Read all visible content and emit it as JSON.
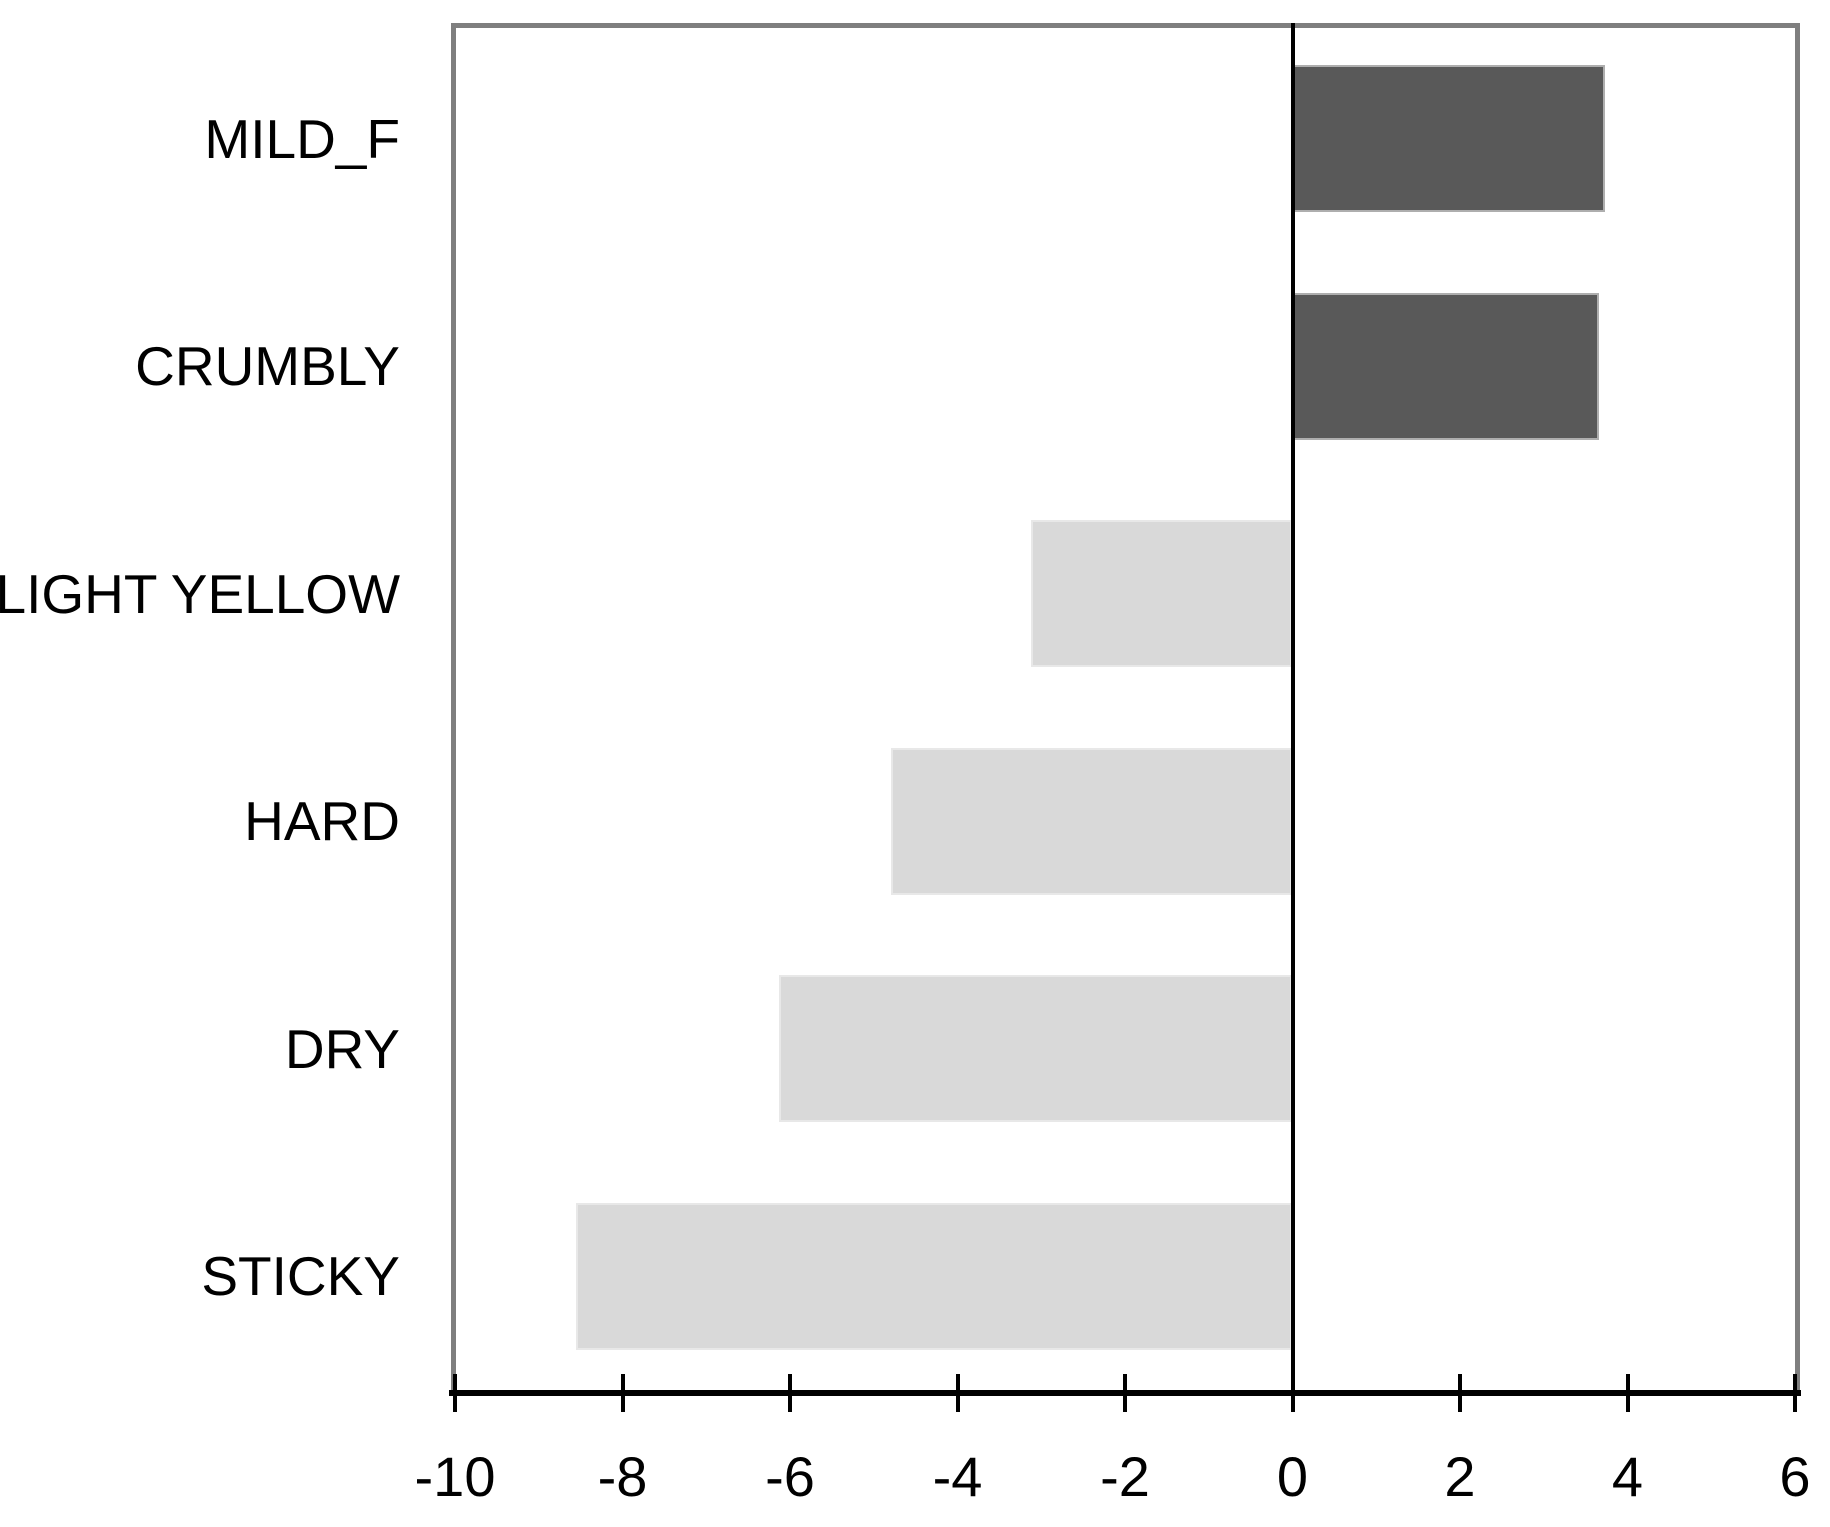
{
  "chart_data": {
    "type": "bar",
    "orientation": "horizontal",
    "title": "",
    "xlabel": "",
    "ylabel": "",
    "categories": [
      "MILD_F",
      "CRUMBLY",
      "LIGHT YELLOW",
      "HARD",
      "DRY",
      "STICKY"
    ],
    "values": [
      3.73,
      3.66,
      -3.12,
      -4.79,
      -6.13,
      -8.55
    ],
    "xlim": [
      -10,
      6
    ],
    "xticks": [
      -10,
      -8,
      -6,
      -4,
      -2,
      0,
      2,
      4,
      6
    ],
    "xtick_labels": [
      "-10",
      "-8",
      "-6",
      "-4",
      "-2",
      "0",
      "2",
      "4",
      "6"
    ],
    "grid": false,
    "legend": false,
    "colors": {
      "positive_fill": "#595959",
      "positive_edge": "#aeaeae",
      "negative_fill": "#d9d9d9",
      "negative_edge": "#e8e8e8",
      "axis": "#000000",
      "frame_border": "#7f7f7f",
      "background": "#ffffff",
      "text": "#000000"
    }
  }
}
